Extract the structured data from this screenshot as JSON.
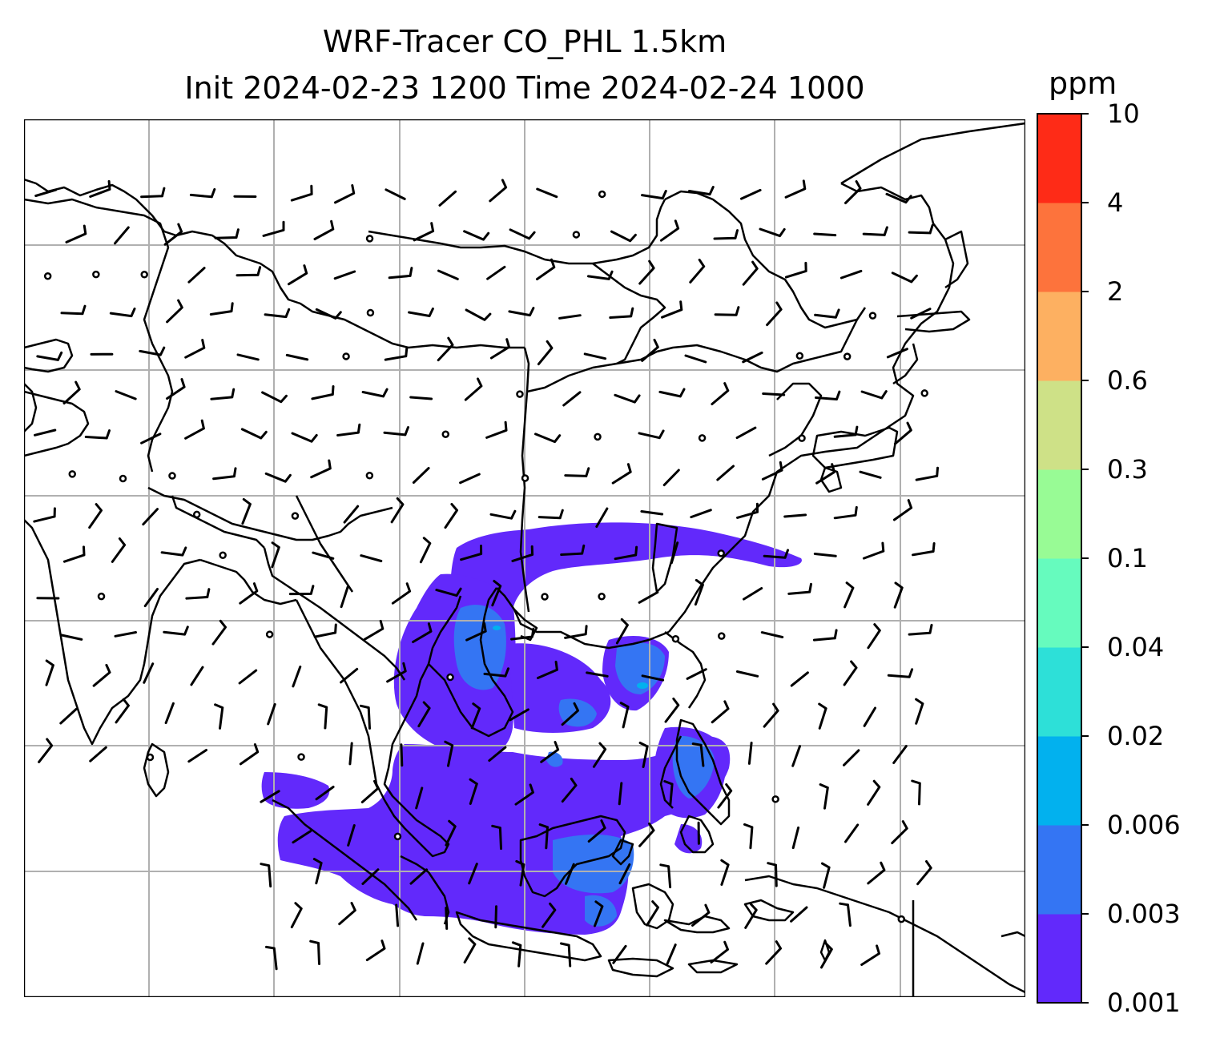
{
  "title": {
    "line1": "WRF-Tracer CO_PHL 1.5km",
    "line2": "Init 2024-02-23 1200 Time 2024-02-24 1000"
  },
  "colorbar": {
    "unit": "ppm",
    "levels": [
      "0.001",
      "0.003",
      "0.006",
      "0.02",
      "0.04",
      "0.1",
      "0.3",
      "0.6",
      "2",
      "4",
      "10"
    ],
    "colors": [
      "#6229fb",
      "#3475f3",
      "#02b1ee",
      "#2de0d8",
      "#66fbbe",
      "#98fb95",
      "#cee187",
      "#fdb061",
      "#fd733c",
      "#fe2b17"
    ]
  },
  "map": {
    "plume_color": "#6229fb",
    "core_color": "#3475f3",
    "peak_color": "#02b1ee",
    "coast_color": "#000000",
    "grid_color": "#b0b0b0",
    "wind_barb_color": "#000000"
  }
}
